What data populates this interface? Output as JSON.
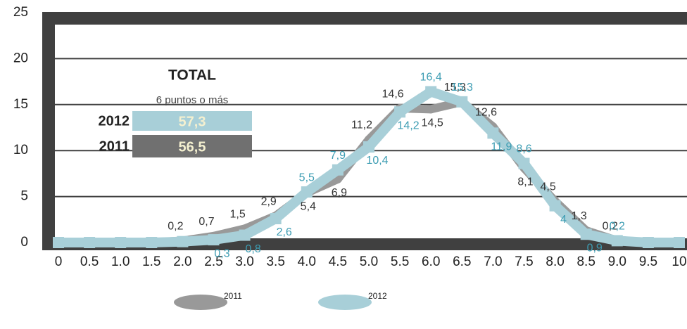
{
  "chart_data": {
    "type": "line",
    "categories": [
      "0",
      "0.5",
      "1.0",
      "1.5",
      "2.0",
      "2.5",
      "3.0",
      "3.5",
      "4.0",
      "4.5",
      "5.0",
      "5.5",
      "6.0",
      "6.5",
      "7.0",
      "7.5",
      "8.0",
      "8.5",
      "9.0",
      "9.5",
      "10"
    ],
    "series": [
      {
        "name": "2011",
        "color": "#999999",
        "values": [
          0,
          0,
          0,
          0,
          0.2,
          0.7,
          1.5,
          2.9,
          5.4,
          6.9,
          11.2,
          14.6,
          14.5,
          15.3,
          12.6,
          8.1,
          4.5,
          1.3,
          0.2,
          0,
          0
        ],
        "value_labels": [
          null,
          null,
          null,
          null,
          "0,2",
          "0,7",
          "1,5",
          "2,9",
          "5,4",
          "6,9",
          "11,2",
          "14,6",
          "14,5",
          "15,3",
          "12,6",
          "8,1",
          "4,5",
          "1,3",
          "0,2",
          null,
          null
        ]
      },
      {
        "name": "2012",
        "color": "#a8cfd8",
        "values": [
          0,
          0,
          0,
          0,
          0.1,
          0.3,
          0.8,
          2.6,
          5.5,
          7.9,
          10.4,
          14.2,
          16.4,
          15.3,
          11.9,
          8.6,
          4,
          0.9,
          0.2,
          0,
          0
        ],
        "value_labels": [
          null,
          null,
          null,
          null,
          null,
          "0,3",
          "0,8",
          "2,6",
          "5,5",
          "7,9",
          "10,4",
          "14,2",
          "16,4",
          "15,3",
          "11,9",
          "8,6",
          "4",
          "0,9",
          "0,2",
          null,
          null
        ]
      }
    ],
    "ylim": [
      0,
      25
    ],
    "yticks": [
      0,
      5,
      10,
      15,
      20,
      25
    ],
    "grid": true,
    "summary": {
      "title": "TOTAL",
      "subtitle": "6 puntos o más",
      "rows": [
        {
          "label": "2012",
          "value": "57,3"
        },
        {
          "label": "2011",
          "value": "56,5"
        }
      ]
    }
  }
}
